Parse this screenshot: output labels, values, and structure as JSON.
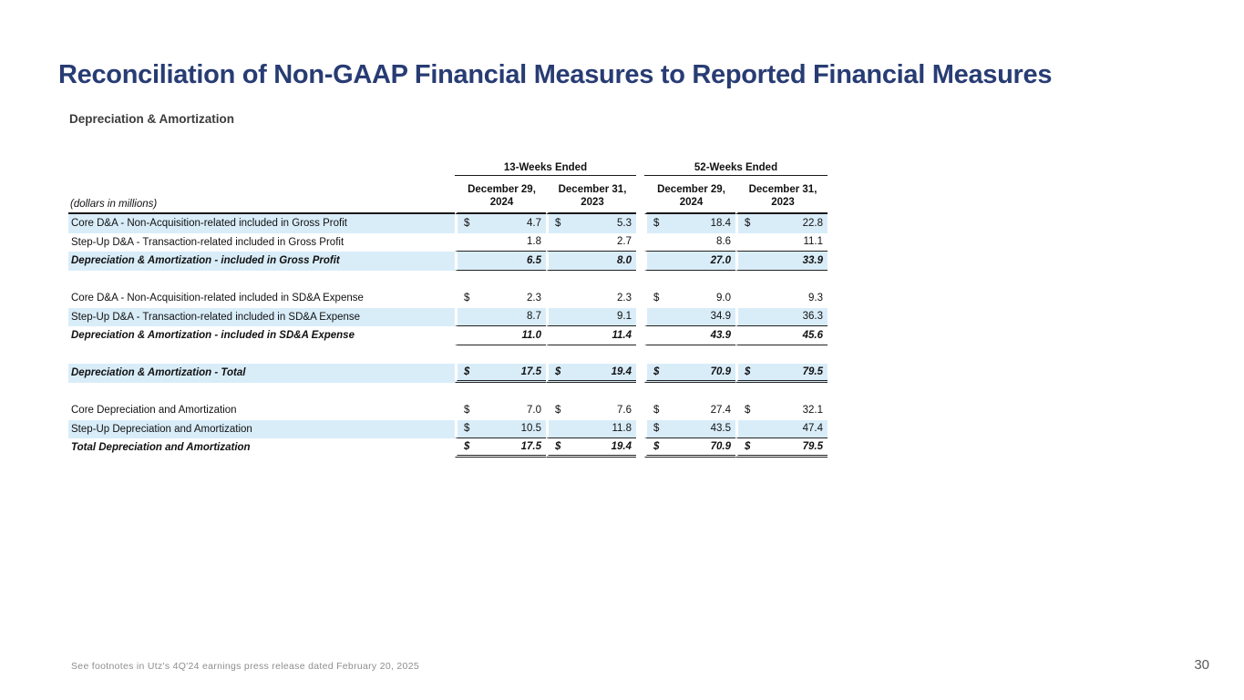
{
  "slide": {
    "title": "Reconciliation of Non-GAAP Financial Measures to Reported Financial Measures",
    "subtitle": "Depreciation & Amortization",
    "footnote": "See footnotes in Utz's 4Q'24 earnings press release dated February 20, 2025",
    "page_number": "30"
  },
  "colors": {
    "accent_navy": "#283C74",
    "row_highlight": "#D9EDF9"
  },
  "table": {
    "units_label": "(dollars in millions)",
    "col_groups": [
      "13-Weeks Ended",
      "52-Weeks Ended"
    ],
    "columns": [
      {
        "line1": "December 29,",
        "line2": "2024"
      },
      {
        "line1": "December 31,",
        "line2": "2023"
      },
      {
        "line1": "December 29,",
        "line2": "2024"
      },
      {
        "line1": "December 31,",
        "line2": "2023"
      }
    ],
    "rows": [
      {
        "type": "data",
        "hl": true,
        "emph": false,
        "uline": "none",
        "label": "Core D&A - Non-Acquisition-related included in Gross Profit",
        "cells": [
          [
            "$",
            "4.7"
          ],
          [
            "$",
            "5.3"
          ],
          [
            "$",
            "18.4"
          ],
          [
            "$",
            "22.8"
          ]
        ]
      },
      {
        "type": "data",
        "hl": false,
        "emph": false,
        "uline": "single",
        "label": "Step-Up D&A - Transaction-related included in Gross Profit",
        "cells": [
          [
            "",
            "1.8"
          ],
          [
            "",
            "2.7"
          ],
          [
            "",
            "8.6"
          ],
          [
            "",
            "11.1"
          ]
        ]
      },
      {
        "type": "data",
        "hl": true,
        "emph": true,
        "uline": "single",
        "label": "Depreciation & Amortization - included in Gross Profit",
        "cells": [
          [
            "",
            "6.5"
          ],
          [
            "",
            "8.0"
          ],
          [
            "",
            "27.0"
          ],
          [
            "",
            "33.9"
          ]
        ]
      },
      {
        "type": "spacer"
      },
      {
        "type": "data",
        "hl": false,
        "emph": false,
        "uline": "none",
        "label": "Core D&A - Non-Acquisition-related included in SD&A Expense",
        "cells": [
          [
            "$",
            "2.3"
          ],
          [
            "",
            "2.3"
          ],
          [
            "$",
            "9.0"
          ],
          [
            "",
            "9.3"
          ]
        ]
      },
      {
        "type": "data",
        "hl": true,
        "emph": false,
        "uline": "single",
        "label": "Step-Up D&A - Transaction-related included in SD&A Expense",
        "cells": [
          [
            "",
            "8.7"
          ],
          [
            "",
            "9.1"
          ],
          [
            "",
            "34.9"
          ],
          [
            "",
            "36.3"
          ]
        ]
      },
      {
        "type": "data",
        "hl": false,
        "emph": true,
        "uline": "single",
        "label": "Depreciation & Amortization - included in SD&A Expense",
        "cells": [
          [
            "",
            "11.0"
          ],
          [
            "",
            "11.4"
          ],
          [
            "",
            "43.9"
          ],
          [
            "",
            "45.6"
          ]
        ]
      },
      {
        "type": "spacer"
      },
      {
        "type": "data",
        "hl": true,
        "emph": true,
        "uline": "double",
        "label": "Depreciation & Amortization - Total",
        "cells": [
          [
            "$",
            "17.5"
          ],
          [
            "$",
            "19.4"
          ],
          [
            "$",
            "70.9"
          ],
          [
            "$",
            "79.5"
          ]
        ]
      },
      {
        "type": "spacer"
      },
      {
        "type": "data",
        "hl": false,
        "emph": false,
        "uline": "none",
        "label": "Core Depreciation and Amortization",
        "cells": [
          [
            "$",
            "7.0"
          ],
          [
            "$",
            "7.6"
          ],
          [
            "$",
            "27.4"
          ],
          [
            "$",
            "32.1"
          ]
        ]
      },
      {
        "type": "data",
        "hl": true,
        "emph": false,
        "uline": "single",
        "label": "Step-Up Depreciation and Amortization",
        "cells": [
          [
            "$",
            "10.5"
          ],
          [
            "",
            "11.8"
          ],
          [
            "$",
            "43.5"
          ],
          [
            "",
            "47.4"
          ]
        ]
      },
      {
        "type": "data",
        "hl": false,
        "emph": true,
        "uline": "double",
        "label": "Total Depreciation and Amortization",
        "cells": [
          [
            "$",
            "17.5"
          ],
          [
            "$",
            "19.4"
          ],
          [
            "$",
            "70.9"
          ],
          [
            "$",
            "79.5"
          ]
        ]
      }
    ]
  }
}
